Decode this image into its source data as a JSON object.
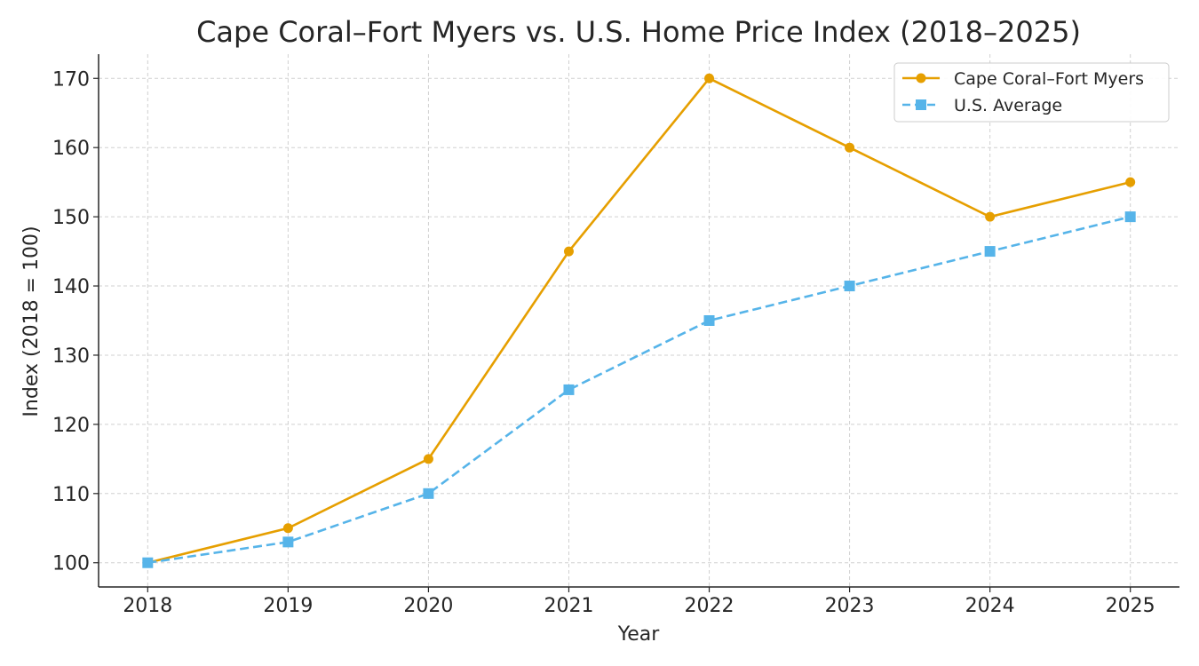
{
  "chart_data": {
    "type": "line",
    "title": "Cape Coral–Fort Myers vs. U.S. Home Price Index (2018–2025)",
    "xlabel": "Year",
    "ylabel": "Index (2018 = 100)",
    "x": [
      2018,
      2019,
      2020,
      2021,
      2022,
      2023,
      2024,
      2025
    ],
    "xticks": [
      "2018",
      "2019",
      "2020",
      "2021",
      "2022",
      "2023",
      "2024",
      "2025"
    ],
    "yticks": [
      100,
      110,
      120,
      130,
      140,
      150,
      160,
      170
    ],
    "xlim": [
      2017.65,
      2025.35
    ],
    "ylim": [
      96.5,
      173.5
    ],
    "grid": true,
    "legend_position": "top-right",
    "series": [
      {
        "name": "Cape Coral–Fort Myers",
        "color": "#E69F00",
        "marker": "circle",
        "linestyle": "solid",
        "values": [
          100,
          105,
          115,
          145,
          170,
          160,
          150,
          155
        ]
      },
      {
        "name": "U.S. Average",
        "color": "#56B4E9",
        "marker": "square",
        "linestyle": "dashed",
        "values": [
          100,
          103,
          110,
          125,
          135,
          140,
          145,
          150
        ]
      }
    ]
  }
}
